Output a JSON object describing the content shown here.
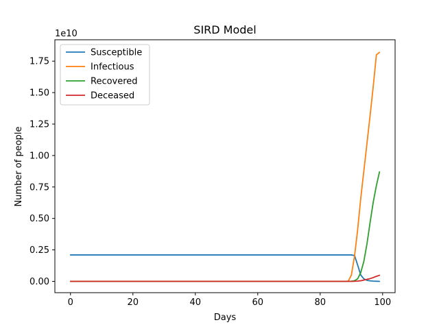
{
  "chart_data": {
    "type": "line",
    "title": "SIRD Model",
    "xlabel": "Days",
    "ylabel": "Number of people",
    "y_offset_text": "1e10",
    "xlim": [
      -5,
      104
    ],
    "ylim": [
      -0.09,
      1.92
    ],
    "y_unit_multiplier": 10000000000.0,
    "xticks": [
      0,
      20,
      40,
      60,
      80,
      100
    ],
    "yticks": [
      0.0,
      0.25,
      0.5,
      0.75,
      1.0,
      1.25,
      1.5,
      1.75
    ],
    "ytick_labels": [
      "0.00",
      "0.25",
      "0.50",
      "0.75",
      "1.00",
      "1.25",
      "1.50",
      "1.75"
    ],
    "grid": false,
    "legend_position": "upper-left",
    "series": [
      {
        "name": "Susceptible",
        "color": "#1f77b4",
        "x": [
          0,
          10,
          20,
          30,
          40,
          50,
          60,
          70,
          80,
          88,
          90,
          91,
          92,
          93,
          94,
          95,
          96,
          97,
          98,
          99
        ],
        "y": [
          0.21,
          0.21,
          0.21,
          0.21,
          0.21,
          0.21,
          0.21,
          0.21,
          0.21,
          0.21,
          0.21,
          0.205,
          0.13,
          0.05,
          0.02,
          0.008,
          0.004,
          0.002,
          0.001,
          0.0
        ]
      },
      {
        "name": "Infectious",
        "color": "#ff7f0e",
        "x": [
          0,
          10,
          20,
          30,
          40,
          50,
          60,
          70,
          80,
          88,
          89,
          90,
          91,
          92,
          93,
          94,
          95,
          96,
          97,
          98,
          99
        ],
        "y": [
          0,
          0,
          0,
          0,
          0,
          0,
          0,
          0,
          0,
          0.0,
          0.002,
          0.05,
          0.2,
          0.41,
          0.66,
          0.88,
          1.1,
          1.32,
          1.55,
          1.8,
          1.82
        ]
      },
      {
        "name": "Recovered",
        "color": "#2ca02c",
        "x": [
          0,
          10,
          20,
          30,
          40,
          50,
          60,
          70,
          80,
          88,
          90,
          91,
          92,
          93,
          94,
          95,
          96,
          97,
          98,
          99
        ],
        "y": [
          0,
          0,
          0,
          0,
          0,
          0,
          0,
          0,
          0,
          0.0,
          0.001,
          0.005,
          0.02,
          0.07,
          0.16,
          0.3,
          0.47,
          0.63,
          0.76,
          0.87
        ]
      },
      {
        "name": "Deceased",
        "color": "#d62728",
        "x": [
          0,
          10,
          20,
          30,
          40,
          50,
          60,
          70,
          80,
          88,
          90,
          91,
          92,
          93,
          94,
          95,
          96,
          97,
          98,
          99
        ],
        "y": [
          0,
          0,
          0,
          0,
          0,
          0,
          0,
          0,
          0,
          0.0,
          0.0,
          0.0005,
          0.002,
          0.005,
          0.01,
          0.016,
          0.022,
          0.03,
          0.04,
          0.048
        ]
      }
    ]
  }
}
